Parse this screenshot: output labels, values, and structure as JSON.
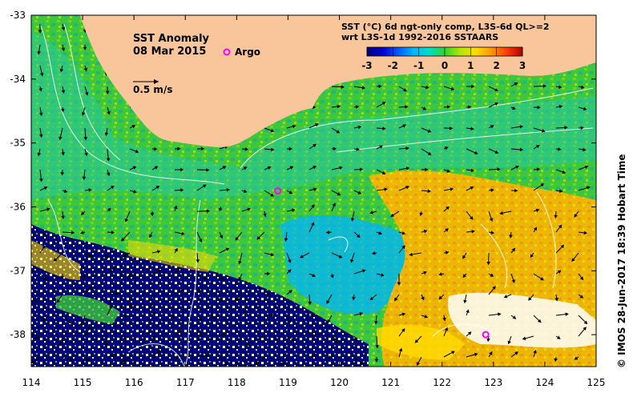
{
  "title": "SST Anomaly",
  "date": "08 Mar 2015",
  "argo_label": "Argo",
  "velocity_legend": "0.5 m/s",
  "colorbar": {
    "title_line1": "SST (°C) 6d ngt-only comp, L3S-6d QL>=2",
    "title_line2": "wrt L3S-1d 1992-2016 SSTAARS",
    "ticks": [
      "-3",
      "-2",
      "-1",
      "0",
      "1",
      "2",
      "3"
    ],
    "colors": [
      "#00007a",
      "#0000c8",
      "#005aff",
      "#00b4ff",
      "#00dcc8",
      "#32d232",
      "#b4e600",
      "#ffdc00",
      "#ff9600",
      "#ff3c00",
      "#b40000"
    ]
  },
  "credit": "© IMOS 28-Jun-2017 18:39 Hobart Time",
  "x_axis_ticks": [
    "114",
    "115",
    "116",
    "117",
    "118",
    "119",
    "120",
    "121",
    "122",
    "123",
    "124",
    "125"
  ],
  "y_axis_ticks": [
    "-33",
    "-34",
    "-35",
    "-36",
    "-37",
    "-38"
  ],
  "argo_floats": [
    {
      "lon": 118.8,
      "lat": -35.75
    },
    {
      "lon": 122.85,
      "lat": -38.0
    }
  ],
  "land_color": "#f9c59a",
  "argo_color": "#ff00ff"
}
